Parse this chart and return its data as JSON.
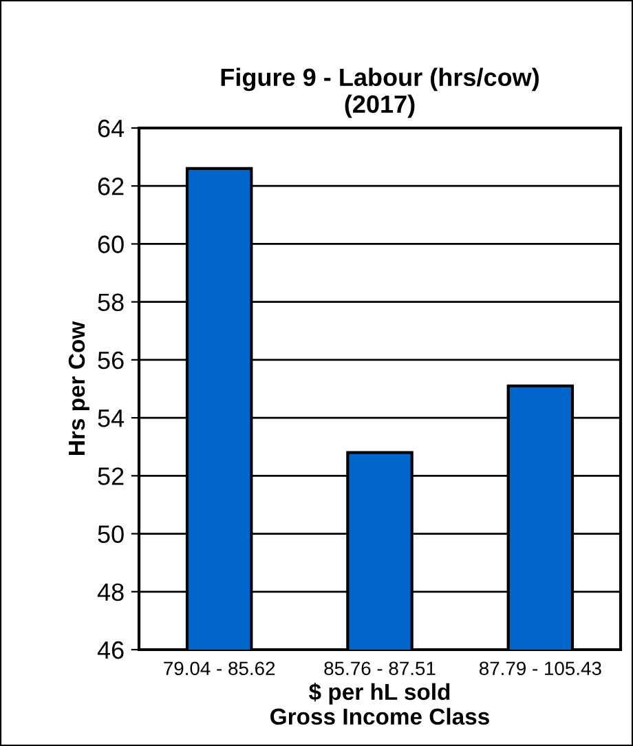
{
  "chart_data": {
    "type": "bar",
    "title": "Figure 9 - Labour (hrs/cow)\n(2017)",
    "xlabel": "$ per hL sold\nGross Income Class",
    "ylabel": "Hrs per Cow",
    "categories": [
      "79.04 - 85.62",
      "85.76 - 87.51",
      "87.79 - 105.43"
    ],
    "values": [
      62.6,
      52.8,
      55.1
    ],
    "color": "#0066cc",
    "ylim": [
      46,
      64
    ],
    "yticks": [
      46,
      48,
      50,
      52,
      54,
      56,
      58,
      60,
      62,
      64
    ],
    "grid": "y",
    "legend": false
  }
}
